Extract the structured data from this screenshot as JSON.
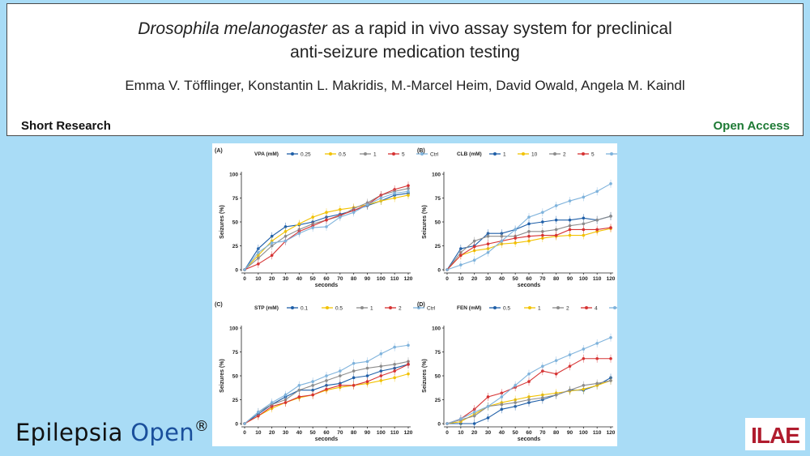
{
  "header": {
    "title_italic": "Drosophila melanogaster",
    "title_rest": " as a rapid in vivo assay system for preclinical",
    "title_line2": "anti-seizure medication testing",
    "authors": "Emma V. Töfflinger, Konstantin L. Makridis, M.-Marcel Heim, David Owald, Angela M. Kaindl",
    "article_type": "Short Research",
    "access": "Open Access"
  },
  "footer": {
    "journal_word1": "Epilepsia",
    "journal_word2": "Open",
    "journal_mark": "®",
    "society_logo_text": "ILAE"
  },
  "colors": {
    "blue": "#1f5fa8",
    "yellow": "#f2c200",
    "gray": "#8c8c8c",
    "red": "#d63333",
    "lightblue": "#7fb3dc",
    "journal_blue": "#1a4f9c",
    "open_access": "#1e7a35",
    "background": "#a9dcf6"
  },
  "chart_data": [
    {
      "panel": "(A)",
      "type": "line",
      "legend_title": "VPA (mM)",
      "xlabel": "seconds",
      "ylabel": "Seizures (%)",
      "x": [
        0,
        10,
        20,
        30,
        40,
        50,
        60,
        70,
        80,
        90,
        100,
        110,
        120
      ],
      "xlim": [
        0,
        120
      ],
      "ylim": [
        0,
        100
      ],
      "yticks": [
        0,
        25,
        50,
        75,
        100
      ],
      "series": [
        {
          "name": "0.25",
          "color": "#1f5fa8",
          "values": [
            0,
            22,
            35,
            45,
            47,
            50,
            55,
            58,
            62,
            67,
            72,
            78,
            80
          ]
        },
        {
          "name": "0.5",
          "color": "#f2c200",
          "values": [
            0,
            15,
            30,
            40,
            48,
            55,
            60,
            63,
            65,
            68,
            72,
            75,
            78
          ]
        },
        {
          "name": "1",
          "color": "#8c8c8c",
          "values": [
            0,
            12,
            25,
            35,
            42,
            48,
            52,
            56,
            64,
            70,
            78,
            82,
            85
          ]
        },
        {
          "name": "5",
          "color": "#d63333",
          "values": [
            0,
            6,
            15,
            30,
            40,
            46,
            52,
            57,
            62,
            68,
            78,
            84,
            88
          ]
        },
        {
          "name": "Ctrl",
          "color": "#7fb3dc",
          "values": [
            0,
            18,
            28,
            30,
            38,
            44,
            45,
            55,
            60,
            68,
            75,
            80,
            82
          ]
        }
      ]
    },
    {
      "panel": "(B)",
      "type": "line",
      "legend_title": "CLB (mM)",
      "xlabel": "seconds",
      "ylabel": "Seizures (%)",
      "x": [
        0,
        10,
        20,
        30,
        40,
        50,
        60,
        70,
        80,
        90,
        100,
        110,
        120
      ],
      "xlim": [
        0,
        120
      ],
      "ylim": [
        0,
        100
      ],
      "yticks": [
        0,
        25,
        50,
        75,
        100
      ],
      "series": [
        {
          "name": "1",
          "color": "#1f5fa8",
          "values": [
            0,
            22,
            25,
            38,
            38,
            42,
            48,
            50,
            52,
            52,
            54,
            52,
            56
          ]
        },
        {
          "name": "10",
          "color": "#f2c200",
          "values": [
            0,
            15,
            20,
            22,
            27,
            28,
            30,
            33,
            35,
            36,
            36,
            40,
            43
          ]
        },
        {
          "name": "2",
          "color": "#8c8c8c",
          "values": [
            0,
            18,
            30,
            35,
            35,
            35,
            40,
            40,
            42,
            46,
            48,
            52,
            56
          ]
        },
        {
          "name": "5",
          "color": "#d63333",
          "values": [
            0,
            15,
            24,
            27,
            30,
            33,
            35,
            36,
            36,
            42,
            42,
            42,
            44
          ]
        },
        {
          "name": "Ctrl",
          "color": "#7fb3dc",
          "values": [
            0,
            5,
            10,
            18,
            30,
            42,
            55,
            60,
            67,
            72,
            76,
            82,
            90
          ]
        }
      ]
    },
    {
      "panel": "(C)",
      "type": "line",
      "legend_title": "STP (mM)",
      "xlabel": "seconds",
      "ylabel": "Seizures (%)",
      "x": [
        0,
        10,
        20,
        30,
        40,
        50,
        60,
        70,
        80,
        90,
        100,
        110,
        120
      ],
      "xlim": [
        0,
        120
      ],
      "ylim": [
        0,
        100
      ],
      "yticks": [
        0,
        25,
        50,
        75,
        100
      ],
      "series": [
        {
          "name": "0.1",
          "color": "#1f5fa8",
          "values": [
            0,
            10,
            20,
            28,
            35,
            35,
            40,
            42,
            48,
            50,
            55,
            58,
            62
          ]
        },
        {
          "name": "0.5",
          "color": "#f2c200",
          "values": [
            0,
            8,
            16,
            22,
            27,
            30,
            35,
            38,
            40,
            42,
            45,
            48,
            52
          ]
        },
        {
          "name": "1",
          "color": "#8c8c8c",
          "values": [
            0,
            12,
            20,
            25,
            35,
            40,
            45,
            50,
            55,
            58,
            60,
            62,
            65
          ]
        },
        {
          "name": "2",
          "color": "#d63333",
          "values": [
            0,
            8,
            18,
            22,
            28,
            30,
            36,
            40,
            40,
            44,
            50,
            55,
            62
          ]
        },
        {
          "name": "Ctrl",
          "color": "#7fb3dc",
          "values": [
            0,
            12,
            22,
            30,
            40,
            44,
            50,
            55,
            63,
            65,
            73,
            80,
            82
          ]
        }
      ]
    },
    {
      "panel": "(D)",
      "type": "line",
      "legend_title": "FEN (mM)",
      "xlabel": "seconds",
      "ylabel": "Seizures (%)",
      "x": [
        0,
        10,
        20,
        30,
        40,
        50,
        60,
        70,
        80,
        90,
        100,
        110,
        120
      ],
      "xlim": [
        0,
        120
      ],
      "ylim": [
        0,
        100
      ],
      "yticks": [
        0,
        25,
        50,
        75,
        100
      ],
      "series": [
        {
          "name": "0.5",
          "color": "#1f5fa8",
          "values": [
            0,
            0,
            0,
            6,
            15,
            18,
            22,
            25,
            30,
            35,
            35,
            40,
            48
          ]
        },
        {
          "name": "1",
          "color": "#f2c200",
          "values": [
            0,
            2,
            10,
            18,
            22,
            25,
            28,
            30,
            32,
            34,
            36,
            40,
            45
          ]
        },
        {
          "name": "2",
          "color": "#8c8c8c",
          "values": [
            0,
            4,
            8,
            18,
            20,
            22,
            25,
            27,
            30,
            35,
            40,
            42,
            45
          ]
        },
        {
          "name": "4",
          "color": "#d63333",
          "values": [
            0,
            5,
            15,
            28,
            32,
            38,
            44,
            55,
            52,
            60,
            68,
            68,
            68
          ]
        },
        {
          "name": "Ctrl",
          "color": "#7fb3dc",
          "values": [
            0,
            5,
            12,
            18,
            28,
            40,
            52,
            60,
            66,
            72,
            78,
            84,
            90
          ]
        }
      ]
    }
  ]
}
